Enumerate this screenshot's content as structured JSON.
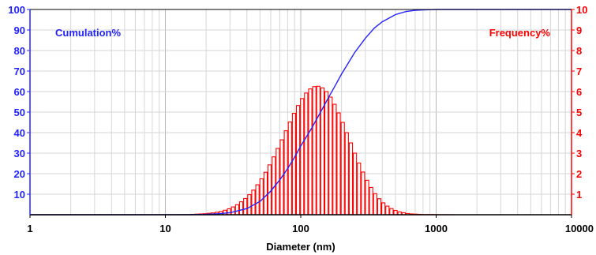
{
  "chart_data": {
    "type": "bar+line",
    "x_scale": "log",
    "xlim": [
      1,
      10000
    ],
    "xlabel": "Diameter (nm)",
    "x_ticks": [
      "1",
      "10",
      "100",
      "1000",
      "10000"
    ],
    "grid": true,
    "colors": {
      "cumulation": "#2222ff",
      "frequency": "#ff0000"
    },
    "left_axis": {
      "label": "Cumulation%",
      "ylim": [
        0,
        100
      ],
      "ticks": [
        "10",
        "20",
        "30",
        "40",
        "50",
        "60",
        "70",
        "80",
        "90",
        "100"
      ]
    },
    "right_axis": {
      "label": "Frequency%",
      "ylim": [
        0,
        10
      ],
      "ticks": [
        "1",
        "2",
        "3",
        "4",
        "5",
        "6",
        "7",
        "8",
        "9",
        "10"
      ]
    },
    "series": [
      {
        "name": "Frequency%",
        "kind": "bar",
        "axis": "right",
        "x": [
          15.85,
          16.98,
          18.2,
          19.5,
          20.89,
          22.39,
          23.99,
          25.7,
          27.54,
          29.51,
          31.62,
          33.88,
          36.31,
          38.9,
          41.69,
          44.67,
          47.86,
          51.29,
          54.95,
          58.88,
          63.1,
          67.61,
          72.44,
          77.62,
          83.18,
          89.13,
          95.5,
          102.3,
          109.6,
          117.5,
          125.9,
          134.9,
          144.5,
          154.9,
          166.0,
          177.8,
          190.5,
          204.2,
          218.8,
          234.4,
          251.2,
          269.2,
          288.4,
          309.0,
          331.1,
          354.8,
          380.2,
          407.4,
          436.5,
          467.7,
          501.2,
          537.0,
          575.4,
          616.6,
          660.7,
          707.9,
          758.6,
          812.8,
          871.0,
          933.3,
          1000,
          1072,
          1148,
          1230,
          1318,
          1413,
          1514,
          1622
        ],
        "values": [
          0.02,
          0.03,
          0.04,
          0.05,
          0.07,
          0.09,
          0.12,
          0.16,
          0.22,
          0.29,
          0.38,
          0.49,
          0.63,
          0.79,
          0.98,
          1.2,
          1.46,
          1.75,
          2.07,
          2.43,
          2.82,
          3.23,
          3.65,
          4.09,
          4.52,
          4.94,
          5.32,
          5.66,
          5.93,
          6.13,
          6.24,
          6.26,
          6.18,
          6.0,
          5.73,
          5.38,
          4.96,
          4.5,
          4.0,
          3.5,
          3.0,
          2.52,
          2.08,
          1.68,
          1.33,
          1.03,
          0.78,
          0.58,
          0.42,
          0.3,
          0.21,
          0.14,
          0.1,
          0.06,
          0.04,
          0.03,
          0.02,
          0.01,
          0.01,
          0.01,
          0.005,
          0.003,
          0.002,
          0.001,
          0.001,
          0.0,
          0.0,
          0.0
        ]
      },
      {
        "name": "Cumulation%",
        "kind": "line",
        "axis": "left",
        "x": [
          1,
          2,
          5,
          10,
          15,
          20,
          25,
          30,
          40,
          50,
          60,
          70,
          80,
          90,
          100,
          120,
          140,
          160,
          180,
          200,
          250,
          300,
          350,
          400,
          500,
          600,
          700,
          800,
          1000,
          1500,
          2000,
          5000,
          10000
        ],
        "values": [
          0,
          0,
          0,
          0.01,
          0.05,
          0.2,
          0.5,
          1.0,
          3.0,
          6.5,
          11.5,
          17.0,
          22.5,
          28.0,
          33.5,
          42.0,
          50.0,
          57.0,
          63.0,
          68.5,
          79.0,
          86.0,
          91.0,
          94.0,
          97.5,
          99.0,
          99.6,
          99.8,
          100,
          100,
          100,
          100,
          100
        ]
      }
    ]
  }
}
